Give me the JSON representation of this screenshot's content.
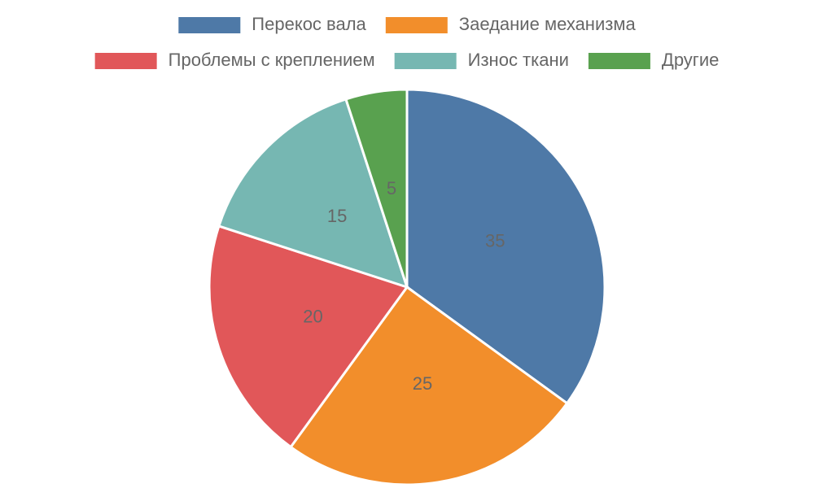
{
  "chart_data": {
    "type": "pie",
    "categories": [
      "Перекос вала",
      "Заедание механизма",
      "Проблемы с креплением",
      "Износ ткани",
      "Другие"
    ],
    "values": [
      35,
      25,
      20,
      15,
      5
    ],
    "colors": [
      "#4e79a7",
      "#f28e2b",
      "#e15759",
      "#76b7b2",
      "#59a14f"
    ],
    "legend": "top"
  }
}
